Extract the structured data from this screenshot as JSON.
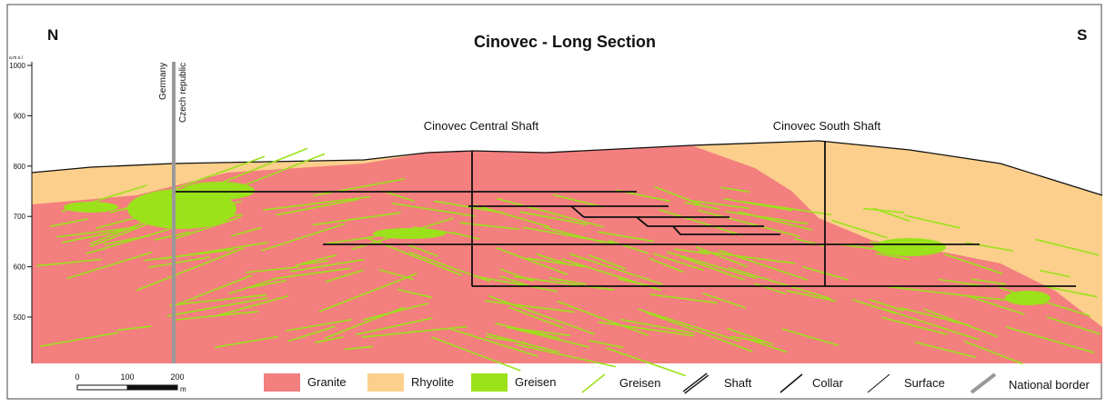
{
  "header": {
    "title": "Cinovec - Long Section",
    "north": "N",
    "south": "S"
  },
  "axis": {
    "unit": "a.m.s.l",
    "ticks": [
      1000,
      900,
      800,
      700,
      600,
      500
    ]
  },
  "border_labels": [
    "Germany",
    "Czech republic"
  ],
  "shafts": [
    "Cinovec Central Shaft",
    "Cinovec South Shaft"
  ],
  "scale": {
    "ticks": [
      "0",
      "100",
      "200"
    ],
    "unit": "m"
  },
  "legend": [
    "Granite",
    "Rhyolite",
    "Greisen",
    "Greisen",
    "Shaft",
    "Collar",
    "Surface",
    "National border"
  ]
}
